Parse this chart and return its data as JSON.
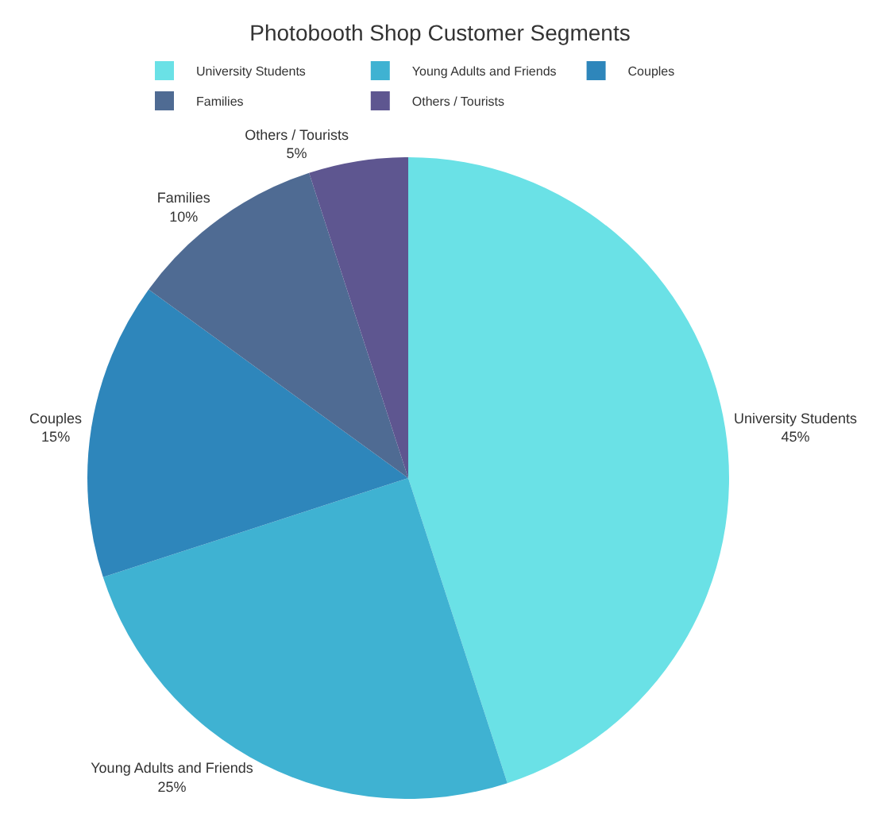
{
  "chart_data": {
    "type": "pie",
    "title": "Photobooth Shop Customer Segments",
    "categories": [
      "University Students",
      "Young Adults and Friends",
      "Couples",
      "Families",
      "Others / Tourists"
    ],
    "values": [
      45,
      25,
      15,
      10,
      5
    ],
    "value_labels": [
      "45%",
      "25%",
      "15%",
      "10%",
      "5%"
    ],
    "colors": [
      "#6ae1e6",
      "#3fb2d2",
      "#2e86bb",
      "#4f6b93",
      "#5e5690"
    ],
    "legend": "top"
  }
}
